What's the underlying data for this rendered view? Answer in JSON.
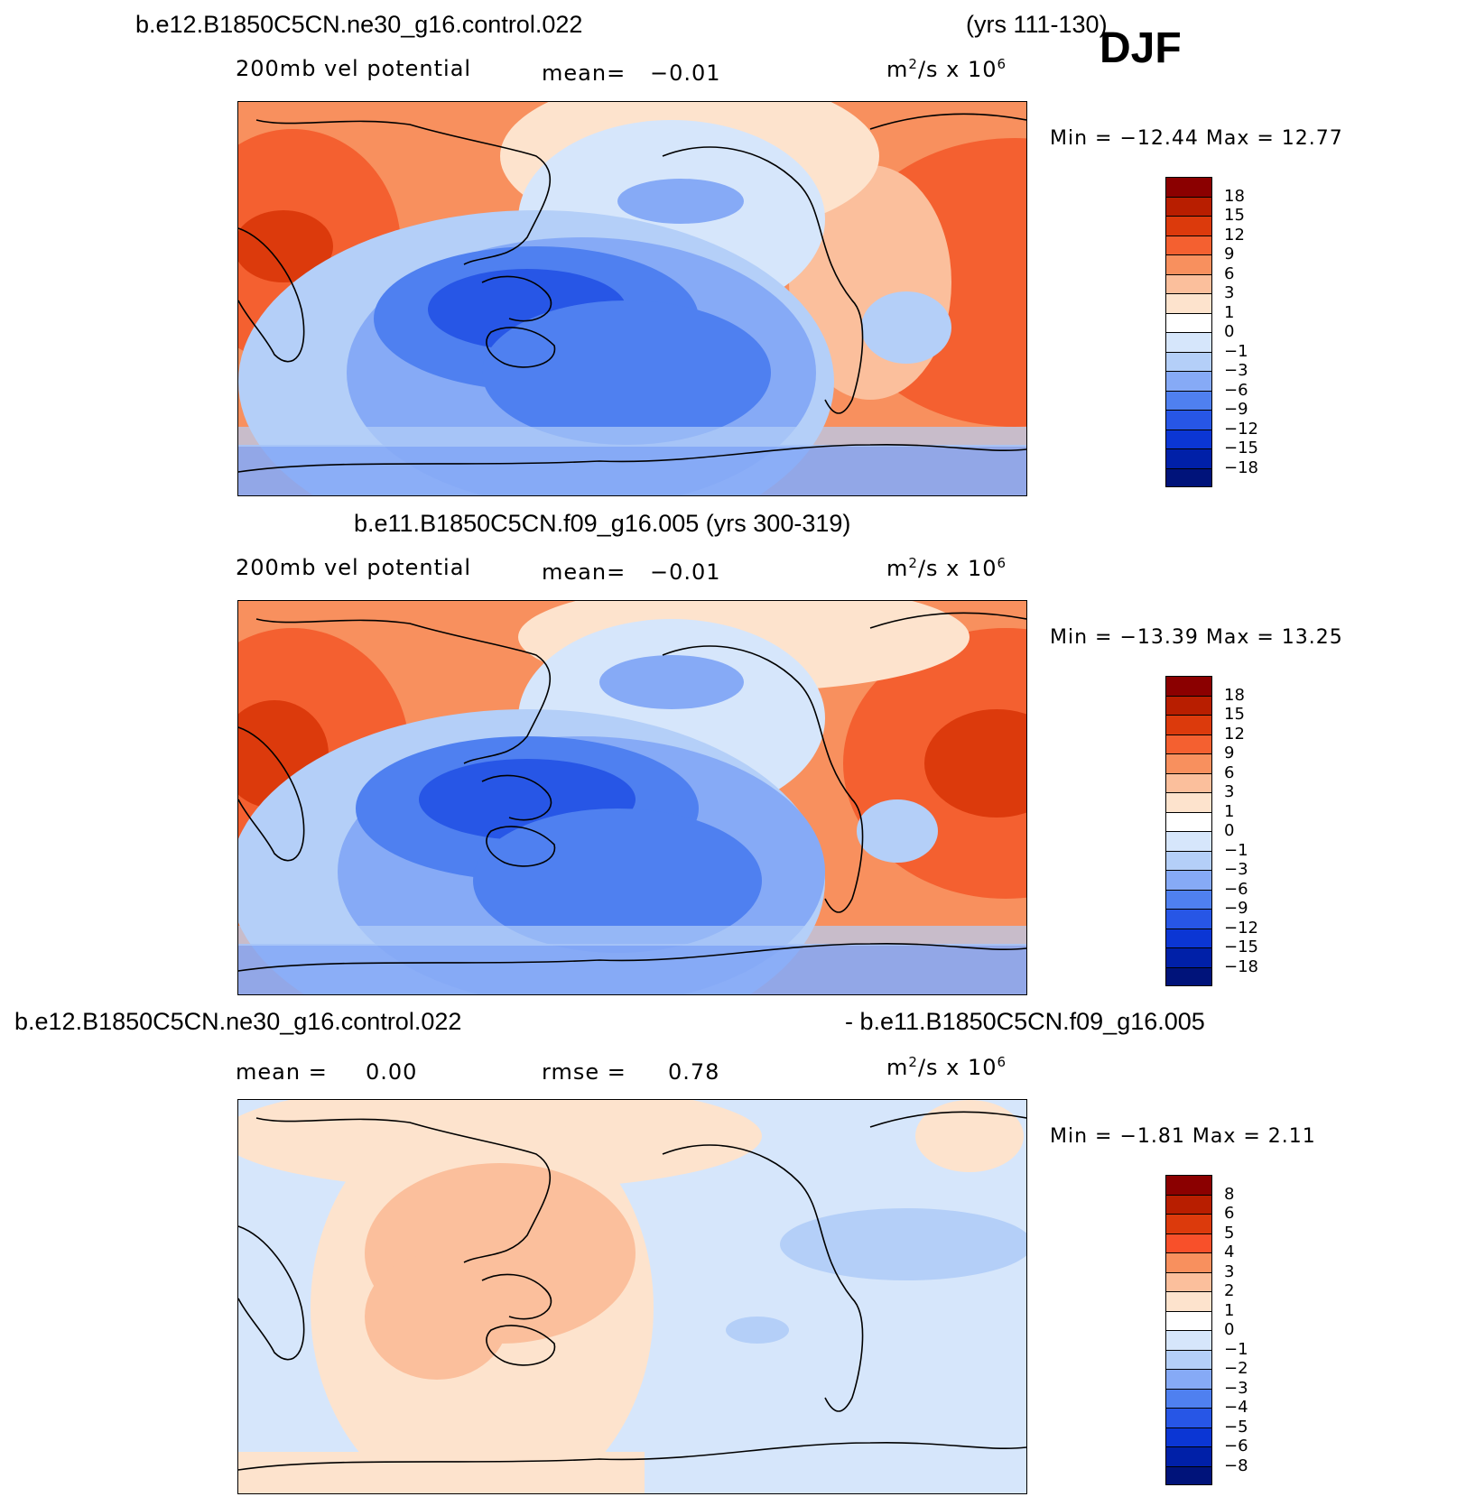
{
  "season": "DJF",
  "panels": [
    {
      "title_left": "b.e12.B1850C5CN.ne30_g16.control.022",
      "title_right": "(yrs 111-130)",
      "variable": "200mb vel potential",
      "stat_label": "mean=",
      "stat_value": "−0.01",
      "units": "m²/s x 10⁶",
      "minmax": "Min = −12.44 Max =  12.77",
      "levels": [
        "18",
        "15",
        "12",
        "9",
        "6",
        "3",
        "1",
        "0",
        "−1",
        "−3",
        "−6",
        "−9",
        "−12",
        "−15",
        "−18"
      ],
      "colors": [
        "#8b0000",
        "#b81e00",
        "#dc3a0c",
        "#f46030",
        "#f8905e",
        "#fbbf9c",
        "#fde3cd",
        "#ffffff",
        "#d6e6fb",
        "#b4cff8",
        "#86aaf6",
        "#4f80f0",
        "#2756e6",
        "#0b36d4",
        "#0020a8",
        "#00137a"
      ]
    },
    {
      "title_left": "b.e11.B1850C5CN.f09_g16.005 (yrs 300-319)",
      "variable": "200mb vel potential",
      "stat_label": "mean=",
      "stat_value": "−0.01",
      "units": "m²/s x 10⁶",
      "minmax": "Min = −13.39 Max =  13.25",
      "levels": [
        "18",
        "15",
        "12",
        "9",
        "6",
        "3",
        "1",
        "0",
        "−1",
        "−3",
        "−6",
        "−9",
        "−12",
        "−15",
        "−18"
      ]
    },
    {
      "title_left": "b.e12.B1850C5CN.ne30_g16.control.022",
      "title_right": "- b.e11.B1850C5CN.f09_g16.005",
      "stat_label": "mean =",
      "stat_value": "0.00",
      "stat2_label": "rmse =",
      "stat2_value": "0.78",
      "units": "m²/s x 10⁶",
      "minmax": "Min =  −1.81 Max =   2.11",
      "levels": [
        "8",
        "6",
        "5",
        "4",
        "3",
        "2",
        "1",
        "0",
        "−1",
        "−2",
        "−3",
        "−4",
        "−5",
        "−6",
        "−8"
      ]
    }
  ],
  "icons": {
    "coastline": "world-coastline-map"
  }
}
